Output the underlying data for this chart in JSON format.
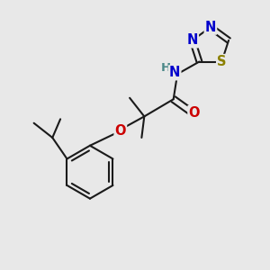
{
  "background_color": "#e8e8e8",
  "bond_color": "#1a1a1a",
  "bond_width": 1.5,
  "atom_colors": {
    "S": "#8B8000",
    "N": "#0000CC",
    "O": "#CC0000",
    "H": "#4a8888",
    "C": "#1a1a1a"
  },
  "font_size": 9.5,
  "fig_width": 3.0,
  "fig_height": 3.0,
  "xlim": [
    0,
    10
  ],
  "ylim": [
    0,
    10
  ]
}
